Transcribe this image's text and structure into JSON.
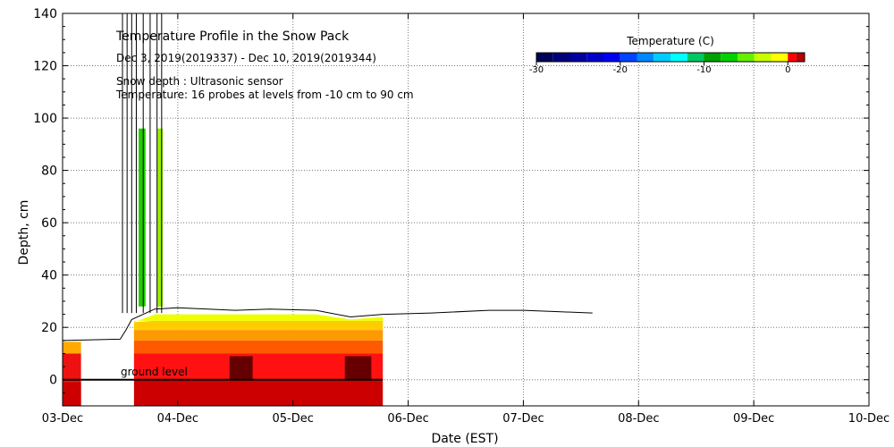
{
  "chart_data": {
    "type": "heatmap",
    "title": "Temperature Profile in the Snow Pack",
    "subtitle": "Dec 3, 2019(2019337) - Dec 10, 2019(2019344)",
    "notes": [
      "Snow depth : Ultrasonic sensor",
      "Temperature: 16 probes at levels from -10 cm to 90 cm"
    ],
    "xlabel": "Date (EST)",
    "ylabel": "Depth, cm",
    "xlim": [
      0,
      7
    ],
    "ylim": [
      -10,
      140
    ],
    "x_ticks": [
      "03-Dec",
      "04-Dec",
      "05-Dec",
      "06-Dec",
      "07-Dec",
      "08-Dec",
      "09-Dec",
      "10-Dec"
    ],
    "y_ticks": [
      0,
      20,
      40,
      60,
      80,
      100,
      120,
      140
    ],
    "grid": true,
    "ground_label": "ground level",
    "colorbar": {
      "title": "Temperature (C)",
      "range": [
        -30,
        2
      ],
      "ticks": [
        -30,
        -20,
        -10,
        0
      ],
      "stops": [
        {
          "t": -30,
          "color": "#000055"
        },
        {
          "t": -28,
          "color": "#00007a"
        },
        {
          "t": -26,
          "color": "#0000a0"
        },
        {
          "t": -24,
          "color": "#0000c8"
        },
        {
          "t": -22,
          "color": "#0000f0"
        },
        {
          "t": -20,
          "color": "#0044ff"
        },
        {
          "t": -18,
          "color": "#0088ff"
        },
        {
          "t": -16,
          "color": "#00ccff"
        },
        {
          "t": -14,
          "color": "#00ffff"
        },
        {
          "t": -12,
          "color": "#00c864"
        },
        {
          "t": -10,
          "color": "#00a000"
        },
        {
          "t": -8,
          "color": "#00d200"
        },
        {
          "t": -6,
          "color": "#64f000"
        },
        {
          "t": -4,
          "color": "#c8ff00"
        },
        {
          "t": -2,
          "color": "#ffff00"
        },
        {
          "t": 0,
          "color": "#ff0000"
        },
        {
          "t": 1,
          "color": "#b40000"
        },
        {
          "t": 2,
          "color": "#640000"
        }
      ]
    },
    "temperature_bands": [
      {
        "x": [
          0.0,
          0.16
        ],
        "y": [
          -10,
          10
        ],
        "color": "#ee1111"
      },
      {
        "x": [
          0.0,
          0.16
        ],
        "y": [
          10,
          14.5
        ],
        "color": "#ffaa00"
      },
      {
        "x": [
          0.0,
          0.16
        ],
        "y": [
          -10,
          -1
        ],
        "color": "#cc0000"
      },
      {
        "x": [
          0.62,
          2.78
        ],
        "y": [
          -10,
          0
        ],
        "color": "#cc0000"
      },
      {
        "x": [
          0.62,
          2.78
        ],
        "y": [
          0,
          10
        ],
        "color": "#ff1111"
      },
      {
        "x": [
          1.45,
          1.65
        ],
        "y": [
          0,
          9
        ],
        "color": "#660000"
      },
      {
        "x": [
          2.45,
          2.68
        ],
        "y": [
          0,
          9
        ],
        "color": "#660000"
      },
      {
        "x": [
          0.66,
          0.72
        ],
        "y": [
          28,
          96
        ],
        "color": "#22cc00"
      },
      {
        "x": [
          0.82,
          0.87
        ],
        "y": [
          28,
          96
        ],
        "color": "#99ee00"
      }
    ],
    "snow_depth": [
      {
        "x": 0.0,
        "y": 15
      },
      {
        "x": 0.5,
        "y": 15.5
      },
      {
        "x": 0.55,
        "y": 19
      },
      {
        "x": 0.6,
        "y": 23
      },
      {
        "x": 0.8,
        "y": 27
      },
      {
        "x": 1.0,
        "y": 27.5
      },
      {
        "x": 1.5,
        "y": 26.5
      },
      {
        "x": 1.8,
        "y": 27
      },
      {
        "x": 2.2,
        "y": 26.5
      },
      {
        "x": 2.5,
        "y": 24
      },
      {
        "x": 2.78,
        "y": 25
      },
      {
        "x": 3.2,
        "y": 25.5
      },
      {
        "x": 3.7,
        "y": 26.5
      },
      {
        "x": 4.0,
        "y": 26.5
      },
      {
        "x": 4.3,
        "y": 26
      },
      {
        "x": 4.6,
        "y": 25.5
      }
    ],
    "sensor_spikes_x": [
      0.52,
      0.56,
      0.6,
      0.64,
      0.7,
      0.76,
      0.82,
      0.86
    ]
  }
}
